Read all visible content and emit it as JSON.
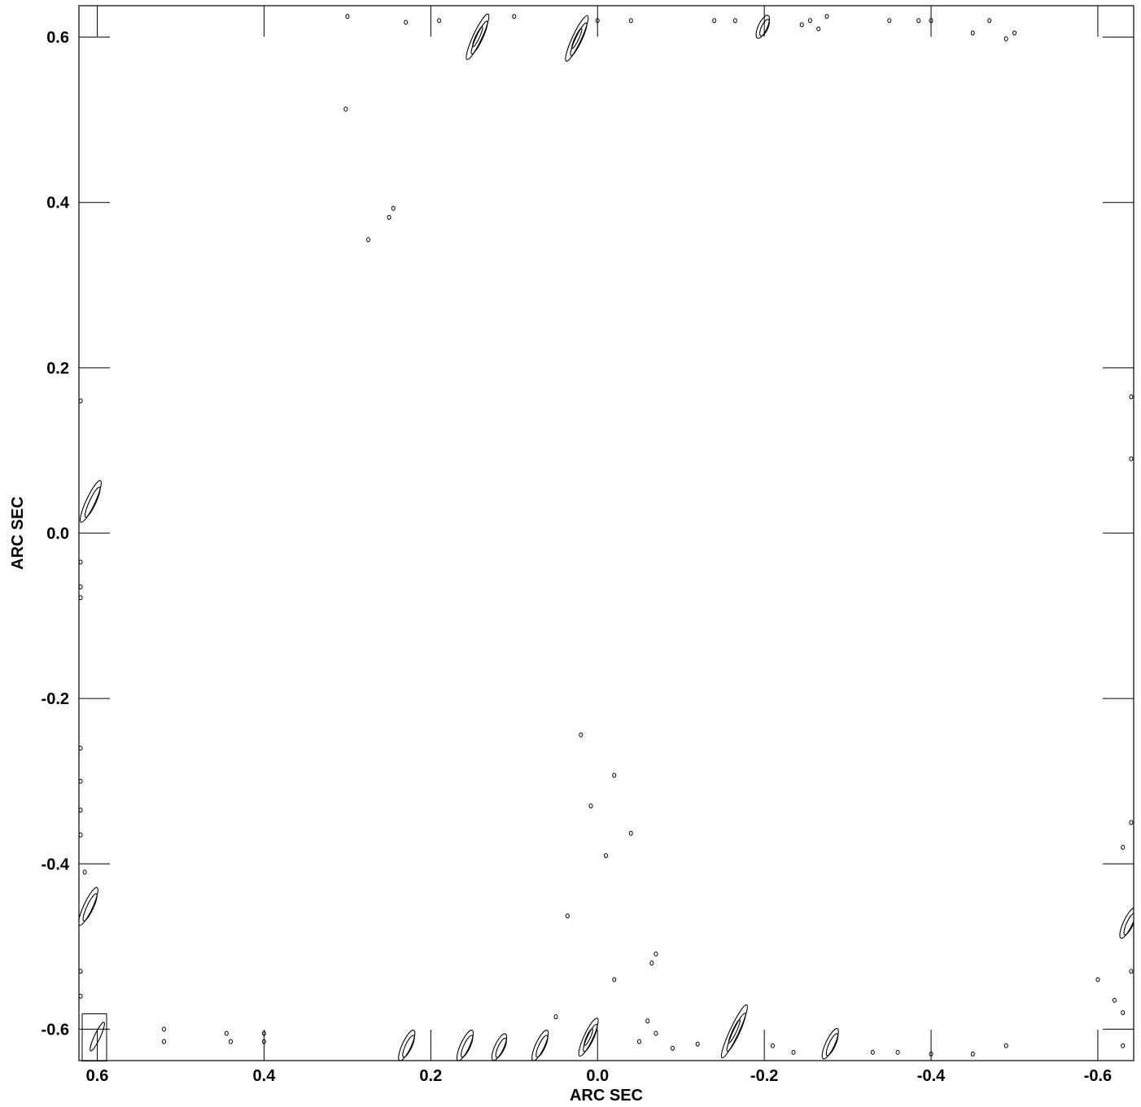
{
  "chart_data": {
    "type": "contour",
    "title": "",
    "xlabel": "ARC SEC",
    "ylabel": "ARC SEC",
    "xlim": [
      0.622,
      -0.643
    ],
    "ylim": [
      -0.638,
      0.638
    ],
    "x_reversed": true,
    "grid": false,
    "x_ticks": [
      0.6,
      0.4,
      0.2,
      0.0,
      -0.2,
      -0.4,
      -0.6
    ],
    "x_tick_labels": [
      "0.6",
      "0.4",
      "0.2",
      "0.0",
      "-0.2",
      "-0.4",
      "-0.6"
    ],
    "y_ticks": [
      0.6,
      0.4,
      0.2,
      0.0,
      -0.2,
      -0.4,
      -0.6
    ],
    "y_tick_labels": [
      "0.6",
      "0.4",
      "0.2",
      "0.0",
      "-0.2",
      "-0.4",
      "-0.6"
    ],
    "contour_levels": 3,
    "beam": {
      "x": 0.6,
      "y": -0.609,
      "major": 0.038,
      "minor": 0.007
    },
    "sources": [
      {
        "x": 0.607,
        "y": 0.038,
        "length": 0.055,
        "levels": 2
      },
      {
        "x": 0.61,
        "y": -0.452,
        "length": 0.05,
        "levels": 2
      },
      {
        "x": 0.143,
        "y": 0.6,
        "length": 0.06,
        "levels": 3
      },
      {
        "x": 0.024,
        "y": 0.598,
        "length": 0.06,
        "levels": 3
      },
      {
        "x": -0.199,
        "y": 0.612,
        "length": 0.03,
        "levels": 2
      },
      {
        "x": 0.228,
        "y": -0.62,
        "length": 0.04,
        "levels": 2
      },
      {
        "x": 0.158,
        "y": -0.62,
        "length": 0.04,
        "levels": 2
      },
      {
        "x": 0.117,
        "y": -0.622,
        "length": 0.035,
        "levels": 2
      },
      {
        "x": 0.068,
        "y": -0.62,
        "length": 0.04,
        "levels": 2
      },
      {
        "x": 0.01,
        "y": -0.61,
        "length": 0.05,
        "levels": 3
      },
      {
        "x": -0.165,
        "y": -0.603,
        "length": 0.07,
        "levels": 3
      },
      {
        "x": -0.28,
        "y": -0.618,
        "length": 0.04,
        "levels": 2
      },
      {
        "x": -0.637,
        "y": -0.472,
        "length": 0.04,
        "levels": 2
      }
    ],
    "specks": [
      [
        0.3,
        0.625
      ],
      [
        0.23,
        0.618
      ],
      [
        0.19,
        0.62
      ],
      [
        0.1,
        0.625
      ],
      [
        0.0,
        0.62
      ],
      [
        -0.04,
        0.62
      ],
      [
        -0.14,
        0.62
      ],
      [
        -0.165,
        0.62
      ],
      [
        -0.255,
        0.62
      ],
      [
        -0.275,
        0.625
      ],
      [
        -0.35,
        0.62
      ],
      [
        -0.385,
        0.62
      ],
      [
        -0.4,
        0.62
      ],
      [
        -0.47,
        0.62
      ],
      [
        -0.45,
        0.605
      ],
      [
        -0.5,
        0.605
      ],
      [
        -0.49,
        0.598
      ],
      [
        -0.245,
        0.615
      ],
      [
        -0.265,
        0.61
      ],
      [
        0.302,
        0.513
      ],
      [
        0.245,
        0.393
      ],
      [
        0.25,
        0.382
      ],
      [
        0.275,
        0.355
      ],
      [
        0.02,
        -0.244
      ],
      [
        0.008,
        -0.33
      ],
      [
        -0.02,
        -0.293
      ],
      [
        -0.04,
        -0.363
      ],
      [
        -0.01,
        -0.39
      ],
      [
        0.036,
        -0.463
      ],
      [
        -0.07,
        -0.509
      ],
      [
        -0.065,
        -0.52
      ],
      [
        -0.02,
        -0.54
      ],
      [
        0.05,
        -0.585
      ],
      [
        0.62,
        0.16
      ],
      [
        0.62,
        -0.035
      ],
      [
        0.62,
        -0.065
      ],
      [
        0.62,
        -0.078
      ],
      [
        0.62,
        -0.26
      ],
      [
        0.62,
        -0.3
      ],
      [
        0.62,
        -0.335
      ],
      [
        0.62,
        -0.365
      ],
      [
        0.615,
        -0.41
      ],
      [
        0.62,
        -0.53
      ],
      [
        0.62,
        -0.56
      ],
      [
        -0.64,
        0.165
      ],
      [
        -0.64,
        0.09
      ],
      [
        -0.64,
        -0.35
      ],
      [
        -0.63,
        -0.38
      ],
      [
        -0.64,
        -0.53
      ],
      [
        -0.62,
        -0.565
      ],
      [
        -0.63,
        -0.58
      ],
      [
        -0.6,
        -0.54
      ],
      [
        -0.63,
        -0.62
      ],
      [
        0.52,
        -0.6
      ],
      [
        0.52,
        -0.615
      ],
      [
        0.445,
        -0.605
      ],
      [
        0.44,
        -0.615
      ],
      [
        0.4,
        -0.605
      ],
      [
        0.4,
        -0.615
      ],
      [
        -0.06,
        -0.59
      ],
      [
        -0.07,
        -0.605
      ],
      [
        -0.05,
        -0.615
      ],
      [
        -0.09,
        -0.623
      ],
      [
        -0.12,
        -0.618
      ],
      [
        -0.21,
        -0.62
      ],
      [
        -0.235,
        -0.628
      ],
      [
        -0.33,
        -0.628
      ],
      [
        -0.36,
        -0.628
      ],
      [
        -0.4,
        -0.63
      ],
      [
        -0.45,
        -0.63
      ],
      [
        -0.49,
        -0.62
      ]
    ]
  }
}
